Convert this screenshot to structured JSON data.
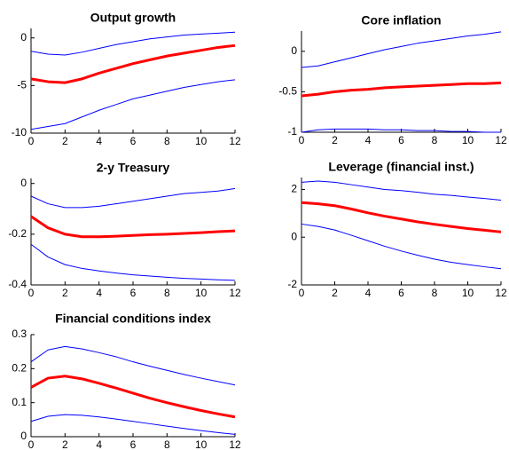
{
  "chart_data": [
    {
      "type": "line",
      "title": "Output growth",
      "x": [
        0,
        1,
        2,
        3,
        4,
        5,
        6,
        7,
        8,
        9,
        10,
        11,
        12
      ],
      "xlim": [
        0,
        12
      ],
      "xticks": [
        0,
        2,
        4,
        6,
        8,
        10,
        12
      ],
      "ylim": [
        -10,
        1
      ],
      "yticks": [
        -10,
        -5,
        0
      ],
      "series": [
        {
          "color": "#0000ff",
          "values": [
            -1.4,
            -1.7,
            -1.8,
            -1.5,
            -1.1,
            -0.7,
            -0.4,
            -0.1,
            0.1,
            0.3,
            0.4,
            0.5,
            0.6
          ]
        },
        {
          "color": "#ff0000",
          "values": [
            -4.3,
            -4.6,
            -4.7,
            -4.3,
            -3.7,
            -3.2,
            -2.7,
            -2.3,
            -1.9,
            -1.6,
            -1.3,
            -1.0,
            -0.8
          ]
        },
        {
          "color": "#0000ff",
          "values": [
            -9.6,
            -9.3,
            -9.0,
            -8.3,
            -7.6,
            -7.0,
            -6.4,
            -6.0,
            -5.6,
            -5.2,
            -4.9,
            -4.6,
            -4.4
          ]
        }
      ]
    },
    {
      "type": "line",
      "title": "Core inflation",
      "x": [
        0,
        1,
        2,
        3,
        4,
        5,
        6,
        7,
        8,
        9,
        10,
        11,
        12
      ],
      "xlim": [
        0,
        12
      ],
      "xticks": [
        0,
        2,
        4,
        6,
        8,
        10,
        12
      ],
      "ylim": [
        -1,
        0.25
      ],
      "yticks": [
        -1,
        -0.5,
        0
      ],
      "series": [
        {
          "color": "#0000ff",
          "values": [
            -0.2,
            -0.18,
            -0.13,
            -0.08,
            -0.03,
            0.02,
            0.06,
            0.1,
            0.13,
            0.16,
            0.19,
            0.21,
            0.24
          ]
        },
        {
          "color": "#ff0000",
          "values": [
            -0.55,
            -0.53,
            -0.5,
            -0.48,
            -0.47,
            -0.45,
            -0.44,
            -0.43,
            -0.42,
            -0.41,
            -0.4,
            -0.4,
            -0.39
          ]
        },
        {
          "color": "#0000ff",
          "values": [
            -1.0,
            -0.97,
            -0.96,
            -0.96,
            -0.96,
            -0.97,
            -0.97,
            -0.98,
            -0.98,
            -0.99,
            -0.99,
            -1.0,
            -1.0
          ]
        }
      ]
    },
    {
      "type": "line",
      "title": "2-y Treasury",
      "x": [
        0,
        1,
        2,
        3,
        4,
        5,
        6,
        7,
        8,
        9,
        10,
        11,
        12
      ],
      "xlim": [
        0,
        12
      ],
      "xticks": [
        0,
        2,
        4,
        6,
        8,
        10,
        12
      ],
      "ylim": [
        -0.4,
        0.02
      ],
      "yticks": [
        -0.4,
        -0.2,
        0
      ],
      "series": [
        {
          "color": "#0000ff",
          "values": [
            -0.05,
            -0.08,
            -0.095,
            -0.095,
            -0.09,
            -0.08,
            -0.07,
            -0.06,
            -0.05,
            -0.04,
            -0.035,
            -0.03,
            -0.02
          ]
        },
        {
          "color": "#ff0000",
          "values": [
            -0.13,
            -0.175,
            -0.2,
            -0.21,
            -0.21,
            -0.208,
            -0.205,
            -0.202,
            -0.2,
            -0.197,
            -0.194,
            -0.19,
            -0.187
          ]
        },
        {
          "color": "#0000ff",
          "values": [
            -0.24,
            -0.29,
            -0.32,
            -0.335,
            -0.345,
            -0.353,
            -0.36,
            -0.365,
            -0.37,
            -0.374,
            -0.377,
            -0.38,
            -0.382
          ]
        }
      ]
    },
    {
      "type": "line",
      "title": "Leverage (financial inst.)",
      "x": [
        0,
        1,
        2,
        3,
        4,
        5,
        6,
        7,
        8,
        9,
        10,
        11,
        12
      ],
      "xlim": [
        0,
        12
      ],
      "xticks": [
        0,
        2,
        4,
        6,
        8,
        10,
        12
      ],
      "ylim": [
        -2,
        2.5
      ],
      "yticks": [
        -2,
        0,
        2
      ],
      "series": [
        {
          "color": "#0000ff",
          "values": [
            2.3,
            2.35,
            2.3,
            2.2,
            2.1,
            2.0,
            1.95,
            1.88,
            1.8,
            1.75,
            1.68,
            1.62,
            1.55
          ]
        },
        {
          "color": "#ff0000",
          "values": [
            1.45,
            1.4,
            1.32,
            1.18,
            1.02,
            0.88,
            0.76,
            0.64,
            0.54,
            0.45,
            0.36,
            0.29,
            0.22
          ]
        },
        {
          "color": "#0000ff",
          "values": [
            0.55,
            0.45,
            0.3,
            0.08,
            -0.15,
            -0.38,
            -0.58,
            -0.76,
            -0.92,
            -1.05,
            -1.15,
            -1.24,
            -1.32
          ]
        }
      ]
    },
    {
      "type": "line",
      "title": "Financial conditions index",
      "x": [
        0,
        1,
        2,
        3,
        4,
        5,
        6,
        7,
        8,
        9,
        10,
        11,
        12
      ],
      "xlim": [
        0,
        12
      ],
      "xticks": [
        0,
        2,
        4,
        6,
        8,
        10,
        12
      ],
      "ylim": [
        0,
        0.3
      ],
      "yticks": [
        0,
        0.1,
        0.2,
        0.3
      ],
      "series": [
        {
          "color": "#0000ff",
          "values": [
            0.22,
            0.255,
            0.265,
            0.258,
            0.247,
            0.235,
            0.22,
            0.207,
            0.195,
            0.183,
            0.172,
            0.162,
            0.152
          ]
        },
        {
          "color": "#ff0000",
          "values": [
            0.145,
            0.172,
            0.178,
            0.17,
            0.157,
            0.143,
            0.128,
            0.113,
            0.1,
            0.088,
            0.077,
            0.067,
            0.058
          ]
        },
        {
          "color": "#0000ff",
          "values": [
            0.045,
            0.06,
            0.065,
            0.063,
            0.058,
            0.052,
            0.045,
            0.038,
            0.031,
            0.024,
            0.018,
            0.012,
            0.007
          ]
        }
      ]
    }
  ]
}
